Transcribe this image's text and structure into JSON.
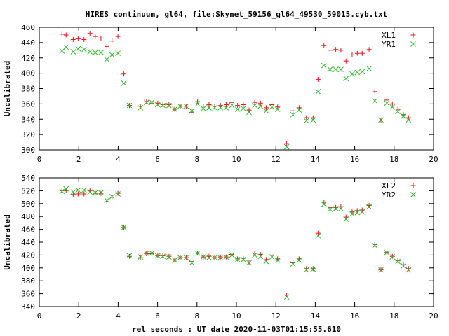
{
  "figure": {
    "title": "HIRES continuum, gl64, file:Skynet_59156_gl64_49530_59015.cyb.txt",
    "xlabel": "rel seconds : UT date 2020-11-03T01:15:55.610",
    "marker_colors": {
      "plus": "#e8141c",
      "cross": "#2fb62f"
    }
  },
  "chart_data": [
    {
      "type": "scatter",
      "ylabel": "Uncalibrated",
      "xlim": [
        0,
        20
      ],
      "ylim": [
        300,
        460
      ],
      "xticks": [
        0,
        2,
        4,
        6,
        8,
        10,
        12,
        14,
        16,
        18,
        20
      ],
      "yticks": [
        300,
        320,
        340,
        360,
        380,
        400,
        420,
        440,
        460
      ],
      "legend_position": "top-right",
      "x": [
        1.15,
        1.36,
        1.72,
        1.97,
        2.27,
        2.57,
        2.84,
        3.13,
        3.43,
        3.69,
        3.99,
        4.29,
        4.57,
        5.13,
        5.44,
        5.71,
        6.01,
        6.27,
        6.58,
        6.87,
        7.15,
        7.45,
        7.74,
        8.03,
        8.32,
        8.61,
        8.9,
        9.19,
        9.48,
        9.77,
        10.06,
        10.35,
        10.64,
        10.93,
        11.22,
        11.51,
        11.8,
        12.09,
        12.55,
        12.87,
        13.18,
        13.55,
        13.89,
        14.14,
        14.44,
        14.75,
        15.04,
        15.3,
        15.56,
        15.87,
        16.13,
        16.38,
        16.73,
        17.02,
        17.33,
        17.63,
        17.91,
        18.19,
        18.47,
        18.73
      ],
      "series": [
        {
          "name": "XL1",
          "marker": "plus",
          "values": [
            451,
            450,
            444,
            445,
            444,
            452,
            448,
            446,
            435,
            442,
            448,
            399,
            358,
            357,
            363,
            361,
            361,
            359,
            359,
            353,
            357,
            357,
            349,
            363,
            357,
            359,
            357,
            358,
            359,
            362,
            358,
            359,
            352,
            362,
            361,
            355,
            359,
            356,
            308,
            351,
            355,
            342,
            342,
            392,
            436,
            430,
            431,
            430,
            416,
            424,
            426,
            426,
            431,
            376,
            339,
            365,
            360,
            353,
            346,
            342
          ]
        },
        {
          "name": "YR1",
          "marker": "cross",
          "values": [
            429,
            434,
            428,
            432,
            431,
            428,
            427,
            427,
            418,
            424,
            426,
            387,
            358,
            355,
            362,
            362,
            359,
            358,
            358,
            353,
            357,
            357,
            351,
            360,
            354,
            355,
            355,
            355,
            355,
            358,
            353,
            354,
            349,
            358,
            357,
            351,
            356,
            353,
            304,
            346,
            352,
            338,
            339,
            376,
            410,
            405,
            405,
            405,
            393,
            399,
            401,
            402,
            406,
            364,
            339,
            361,
            356,
            350,
            344,
            339
          ]
        }
      ]
    },
    {
      "type": "scatter",
      "ylabel": "Uncalibrated",
      "xlim": [
        0,
        20
      ],
      "ylim": [
        340,
        540
      ],
      "xticks": [
        0,
        2,
        4,
        6,
        8,
        10,
        12,
        14,
        16,
        18,
        20
      ],
      "yticks": [
        340,
        360,
        380,
        400,
        420,
        440,
        460,
        480,
        500,
        520,
        540
      ],
      "legend_position": "top-right",
      "x": [
        1.15,
        1.36,
        1.72,
        1.97,
        2.27,
        2.57,
        2.84,
        3.13,
        3.43,
        3.69,
        3.99,
        4.29,
        4.57,
        5.13,
        5.44,
        5.71,
        6.01,
        6.27,
        6.58,
        6.87,
        7.15,
        7.45,
        7.74,
        8.03,
        8.32,
        8.61,
        8.9,
        9.19,
        9.48,
        9.77,
        10.06,
        10.35,
        10.64,
        10.93,
        11.22,
        11.51,
        11.8,
        12.09,
        12.55,
        12.87,
        13.18,
        13.55,
        13.89,
        14.14,
        14.44,
        14.75,
        15.04,
        15.3,
        15.56,
        15.87,
        16.13,
        16.38,
        16.73,
        17.02,
        17.33,
        17.63,
        17.91,
        18.19,
        18.47,
        18.73
      ],
      "series": [
        {
          "name": "XL2",
          "marker": "plus",
          "values": [
            520,
            520,
            514,
            515,
            515,
            520,
            516,
            516,
            503,
            510,
            516,
            463,
            418,
            416,
            422,
            422,
            419,
            419,
            418,
            412,
            416,
            416,
            410,
            423,
            417,
            418,
            416,
            417,
            417,
            421,
            414,
            415,
            409,
            423,
            421,
            413,
            420,
            414,
            358,
            408,
            414,
            399,
            399,
            454,
            502,
            494,
            494,
            495,
            479,
            487,
            489,
            490,
            497,
            436,
            397,
            424,
            418,
            411,
            405,
            399
          ]
        },
        {
          "name": "YR2",
          "marker": "cross",
          "values": [
            519,
            523,
            518,
            521,
            521,
            518,
            517,
            517,
            505,
            511,
            515,
            463,
            419,
            417,
            423,
            423,
            419,
            418,
            417,
            412,
            416,
            416,
            408,
            423,
            417,
            416,
            416,
            416,
            417,
            420,
            413,
            413,
            408,
            420,
            418,
            410,
            417,
            412,
            355,
            406,
            412,
            397,
            398,
            450,
            499,
            491,
            492,
            492,
            476,
            484,
            486,
            487,
            495,
            435,
            397,
            424,
            417,
            410,
            403,
            397
          ]
        }
      ]
    }
  ]
}
